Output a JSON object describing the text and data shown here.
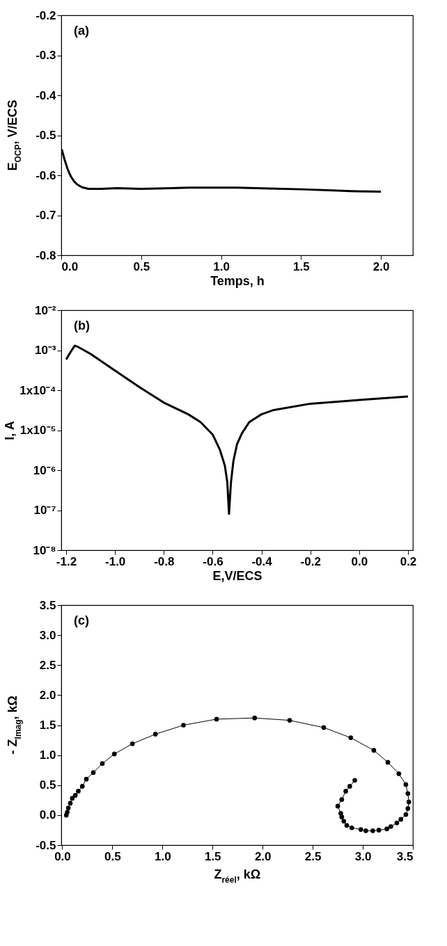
{
  "chart_data": [
    {
      "type": "line",
      "xlabel": "Temps, h",
      "ylabel": "E$_{OCP}$, V/ECS",
      "annotations": [
        "(a)"
      ],
      "marker": "none",
      "line_style": "solid",
      "grid": false,
      "xlim": [
        0,
        2.2
      ],
      "xticks": [
        {
          "value": 0,
          "label": "0.0"
        },
        0.5,
        {
          "value": 1,
          "label": "1.0"
        },
        1.5,
        {
          "value": 2,
          "label": "2.0"
        }
      ],
      "ylim": [
        -0.8,
        -0.2
      ],
      "yticks": [
        -0.8,
        -0.7,
        -0.6,
        -0.5,
        -0.4,
        -0.3,
        -0.2
      ],
      "series": [
        {
          "color": "#000000",
          "x": [
            0.003,
            0.02,
            0.04,
            0.06,
            0.08,
            0.1,
            0.13,
            0.17,
            0.25,
            0.35,
            0.5,
            0.6,
            0.8,
            1.0,
            1.1,
            1.3,
            1.5,
            1.7,
            1.85,
            2.0
          ],
          "values": [
            -0.535,
            -0.56,
            -0.585,
            -0.603,
            -0.615,
            -0.623,
            -0.63,
            -0.634,
            -0.634,
            -0.632,
            -0.634,
            -0.633,
            -0.631,
            -0.631,
            -0.631,
            -0.633,
            -0.635,
            -0.638,
            -0.64,
            -0.641
          ]
        }
      ]
    },
    {
      "type": "line",
      "xlabel": "E,V/ECS",
      "ylabel": "I, A",
      "annotations": [
        "(b)"
      ],
      "marker": "none",
      "line_style": "solid",
      "grid": false,
      "log": "y",
      "xlim": [
        -1.22,
        0.22
      ],
      "xticks": [
        -1.2,
        {
          "value": -1,
          "label": "-1.0"
        },
        -0.8,
        -0.6,
        -0.4,
        -0.2,
        {
          "value": 0,
          "label": "0.0"
        },
        0.2
      ],
      "ylim": [
        1e-08,
        0.01
      ],
      "yticks": [
        {
          "value": 1e-08,
          "label": "10⁻⁸"
        },
        {
          "value": 1e-07,
          "label": "10⁻⁷"
        },
        {
          "value": 1e-06,
          "label": "10⁻⁶"
        },
        {
          "value": 1e-05,
          "label": "1x10⁻⁵"
        },
        {
          "value": 0.0001,
          "label": "1x10⁻⁴"
        },
        {
          "value": 0.001,
          "label": "10⁻³"
        },
        {
          "value": 0.01,
          "label": "10⁻²"
        }
      ],
      "series": [
        {
          "color": "#000000",
          "x": [
            -1.2,
            -1.18,
            -1.165,
            -1.15,
            -1.1,
            -1.0,
            -0.9,
            -0.8,
            -0.7,
            -0.65,
            -0.6,
            -0.57,
            -0.55,
            -0.54,
            -0.533,
            -0.525,
            -0.515,
            -0.5,
            -0.48,
            -0.45,
            -0.4,
            -0.35,
            -0.2,
            0.0,
            0.2
          ],
          "values": [
            0.00059,
            0.00094,
            0.0013,
            0.0012,
            0.00081,
            0.00031,
            0.00012,
            4.9e-05,
            2.5e-05,
            1.6e-05,
            7.8e-06,
            3.2e-06,
            1.3e-06,
            5e-07,
            8.1e-08,
            5e-07,
            1.7e-06,
            4.5e-06,
            8.4e-06,
            1.6e-05,
            2.5e-05,
            3.2e-05,
            4.6e-05,
            5.7e-05,
            7e-05
          ]
        }
      ]
    },
    {
      "type": "line",
      "xlabel": "Z$_{réel}$, kΩ",
      "ylabel": "- Z$_{Imag}$, kΩ",
      "annotations": [
        "(c)"
      ],
      "marker": "circle",
      "line_style": "solid",
      "grid": false,
      "xlim": [
        -0.01,
        3.5
      ],
      "xticks": [
        {
          "value": 0,
          "label": "0.0"
        },
        0.5,
        {
          "value": 1,
          "label": "1.0"
        },
        1.5,
        {
          "value": 2,
          "label": "2.0"
        },
        2.5,
        {
          "value": 3,
          "label": "3.0"
        },
        3.5
      ],
      "ylim": [
        -0.5,
        3.5
      ],
      "yticks": [
        -0.5,
        {
          "value": 0,
          "label": "0.0"
        },
        0.5,
        {
          "value": 1,
          "label": "1.0"
        },
        1.5,
        {
          "value": 2,
          "label": "2.0"
        },
        2.5,
        {
          "value": 3,
          "label": "3.0"
        },
        3.5
      ],
      "series": [
        {
          "color": "#000000",
          "x": [
            0.04,
            0.05,
            0.06,
            0.08,
            0.1,
            0.13,
            0.16,
            0.2,
            0.24,
            0.31,
            0.4,
            0.52,
            0.7,
            0.93,
            1.21,
            1.54,
            1.92,
            2.27,
            2.61,
            2.88,
            3.11,
            3.25,
            3.36,
            3.43,
            3.45,
            3.46,
            3.45,
            3.43,
            3.38,
            3.34,
            3.28,
            3.24,
            3.16,
            3.1,
            3.03,
            2.98,
            2.89,
            2.84,
            2.81,
            2.79,
            2.78,
            2.75,
            2.79,
            2.83,
            2.87,
            2.92
          ],
          "values": [
            0.0,
            0.05,
            0.12,
            0.2,
            0.28,
            0.33,
            0.4,
            0.48,
            0.6,
            0.71,
            0.86,
            1.02,
            1.19,
            1.35,
            1.5,
            1.6,
            1.62,
            1.58,
            1.46,
            1.29,
            1.08,
            0.88,
            0.69,
            0.51,
            0.36,
            0.22,
            0.11,
            0.01,
            -0.07,
            -0.13,
            -0.19,
            -0.23,
            -0.25,
            -0.26,
            -0.26,
            -0.24,
            -0.21,
            -0.17,
            -0.1,
            -0.03,
            0.03,
            0.15,
            0.26,
            0.4,
            0.48,
            0.58
          ]
        }
      ]
    }
  ]
}
